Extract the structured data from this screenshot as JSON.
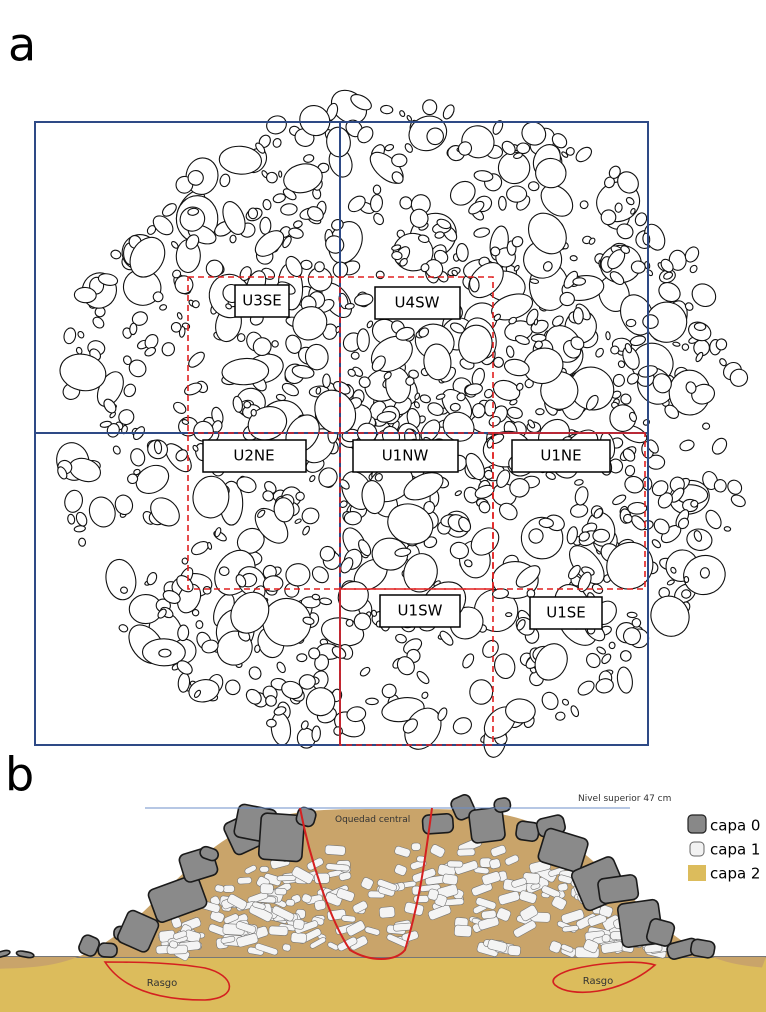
{
  "panel_a": {
    "label": "a",
    "units": [
      "U3SE",
      "U4SW",
      "U2NE",
      "U1NW",
      "U1NE",
      "U1SW",
      "U1SE"
    ]
  },
  "panel_b": {
    "label": "b",
    "level_line": "Nivel superior 47 cm",
    "cavity": "Oquedad central",
    "features": [
      "Rasgo",
      "Rasgo"
    ],
    "legend": [
      "capa 0",
      "capa 1",
      "capa 2"
    ]
  }
}
